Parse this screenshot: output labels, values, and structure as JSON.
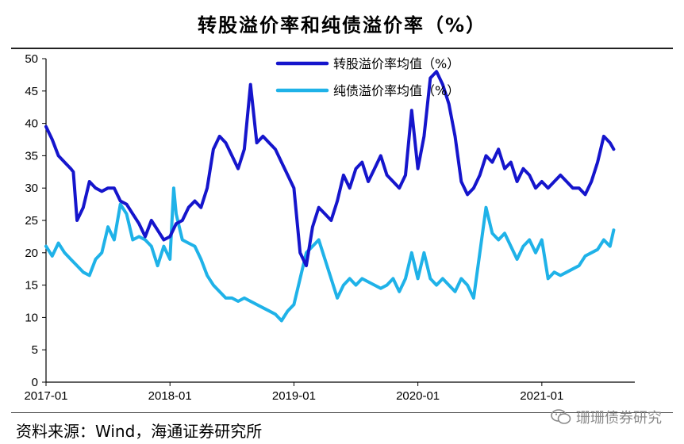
{
  "page": {
    "title": "转股溢价率和纯债溢价率（%）",
    "source": "资料来源：Wind，海通证券研究所",
    "watermark": "珊珊债券研究",
    "watermark_icon": "wechat-icon"
  },
  "chart_data": {
    "type": "line",
    "title": "转股溢价率和纯债溢价率（%）",
    "xlabel": "",
    "ylabel": "",
    "ylim": [
      0,
      50
    ],
    "yticks": [
      0,
      5,
      10,
      15,
      20,
      25,
      30,
      35,
      40,
      45,
      50
    ],
    "xlim": [
      2017.0,
      2021.75
    ],
    "xticks": [
      {
        "value": 2017.0,
        "label": "2017-01"
      },
      {
        "value": 2018.0,
        "label": "2018-01"
      },
      {
        "value": 2019.0,
        "label": "2019-01"
      },
      {
        "value": 2020.0,
        "label": "2020-01"
      },
      {
        "value": 2021.0,
        "label": "2021-01"
      }
    ],
    "grid": false,
    "legend": "top-center",
    "series": [
      {
        "name": "转股溢价率均值（%）",
        "color": "#1515CC",
        "x": [
          2017.0,
          2017.05,
          2017.1,
          2017.15,
          2017.2,
          2017.22,
          2017.25,
          2017.3,
          2017.35,
          2017.4,
          2017.45,
          2017.5,
          2017.55,
          2017.6,
          2017.65,
          2017.7,
          2017.75,
          2017.8,
          2017.85,
          2017.9,
          2017.95,
          2018.0,
          2018.05,
          2018.1,
          2018.15,
          2018.2,
          2018.25,
          2018.3,
          2018.35,
          2018.4,
          2018.45,
          2018.5,
          2018.55,
          2018.6,
          2018.65,
          2018.7,
          2018.75,
          2018.8,
          2018.85,
          2018.9,
          2018.95,
          2019.0,
          2019.05,
          2019.1,
          2019.15,
          2019.2,
          2019.25,
          2019.3,
          2019.35,
          2019.4,
          2019.45,
          2019.5,
          2019.55,
          2019.6,
          2019.65,
          2019.7,
          2019.75,
          2019.8,
          2019.85,
          2019.9,
          2019.95,
          2020.0,
          2020.05,
          2020.1,
          2020.15,
          2020.2,
          2020.25,
          2020.3,
          2020.35,
          2020.4,
          2020.45,
          2020.5,
          2020.55,
          2020.6,
          2020.65,
          2020.7,
          2020.75,
          2020.8,
          2020.85,
          2020.9,
          2020.95,
          2021.0,
          2021.05,
          2021.1,
          2021.15,
          2021.2,
          2021.25,
          2021.3,
          2021.35,
          2021.4,
          2021.45,
          2021.5,
          2021.55,
          2021.58
        ],
        "values": [
          39.5,
          37.5,
          35,
          34,
          33,
          32.5,
          25,
          27,
          31,
          30,
          29.5,
          30,
          30,
          28,
          27.5,
          26,
          24.5,
          22.5,
          25,
          23.5,
          22,
          22.5,
          24.5,
          25,
          27,
          28,
          27,
          30,
          36,
          38,
          37,
          35,
          33,
          36,
          46,
          37,
          38,
          37,
          36,
          34,
          32,
          30,
          20,
          18,
          24,
          27,
          26,
          25,
          28,
          32,
          30,
          33,
          34,
          31,
          33,
          35,
          32,
          31,
          30,
          32,
          42,
          33,
          38,
          47,
          48,
          46,
          43,
          38,
          31,
          29,
          30,
          32,
          35,
          34,
          36,
          33,
          34,
          31,
          33,
          32,
          30,
          31,
          30,
          31,
          32,
          31,
          30,
          30,
          29,
          31,
          34,
          38,
          37,
          36
        ]
      },
      {
        "name": "纯债溢价率均值（%）",
        "color": "#1FB2E8",
        "x": [
          2017.0,
          2017.05,
          2017.1,
          2017.15,
          2017.2,
          2017.25,
          2017.3,
          2017.35,
          2017.4,
          2017.45,
          2017.5,
          2017.55,
          2017.6,
          2017.65,
          2017.7,
          2017.75,
          2017.8,
          2017.85,
          2017.9,
          2017.95,
          2018.0,
          2018.03,
          2018.05,
          2018.1,
          2018.15,
          2018.2,
          2018.25,
          2018.3,
          2018.35,
          2018.4,
          2018.45,
          2018.5,
          2018.55,
          2018.6,
          2018.65,
          2018.7,
          2018.75,
          2018.8,
          2018.85,
          2018.9,
          2018.95,
          2019.0,
          2019.05,
          2019.1,
          2019.15,
          2019.2,
          2019.25,
          2019.3,
          2019.35,
          2019.4,
          2019.45,
          2019.5,
          2019.55,
          2019.6,
          2019.65,
          2019.7,
          2019.75,
          2019.8,
          2019.85,
          2019.9,
          2019.95,
          2020.0,
          2020.05,
          2020.1,
          2020.15,
          2020.2,
          2020.25,
          2020.3,
          2020.35,
          2020.4,
          2020.45,
          2020.5,
          2020.55,
          2020.6,
          2020.65,
          2020.7,
          2020.75,
          2020.8,
          2020.85,
          2020.9,
          2020.95,
          2021.0,
          2021.05,
          2021.1,
          2021.15,
          2021.2,
          2021.25,
          2021.3,
          2021.35,
          2021.4,
          2021.45,
          2021.5,
          2021.55,
          2021.58
        ],
        "values": [
          21,
          19.5,
          21.5,
          20,
          19,
          18,
          17,
          16.5,
          19,
          20,
          24,
          22,
          27.5,
          26,
          22,
          22.5,
          22,
          21,
          18,
          21,
          19,
          30,
          26,
          22,
          21.5,
          21,
          19,
          16.5,
          15,
          14,
          13,
          13,
          12.5,
          13,
          12.5,
          12,
          11.5,
          11,
          10.5,
          9.5,
          11,
          12,
          16,
          20,
          21,
          22,
          19,
          16,
          13,
          15,
          16,
          15,
          16,
          15.5,
          15,
          14.5,
          15,
          16,
          14,
          16,
          20,
          16,
          20,
          16,
          15,
          16,
          15,
          14,
          16,
          15,
          13,
          20,
          27,
          23,
          22,
          23,
          21,
          19,
          21,
          22,
          20,
          22,
          16,
          17,
          16.5,
          17,
          17.5,
          18,
          19.5,
          20,
          20.5,
          22,
          21,
          23.5
        ]
      }
    ]
  }
}
